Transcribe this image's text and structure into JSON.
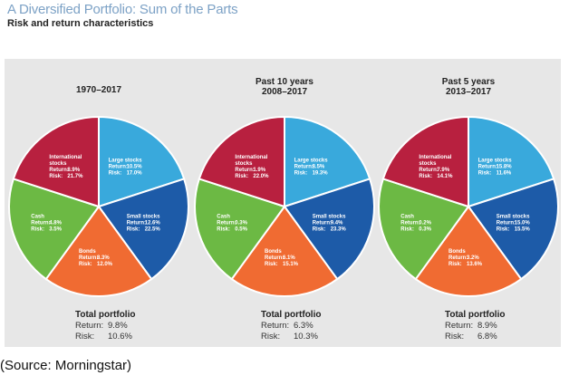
{
  "title": "A Diversified Portfolio: Sum of the Parts",
  "subtitle": "Risk and return characteristics",
  "source": "(Source: Morningstar)",
  "labels": {
    "return": "Return:",
    "risk": "Risk:",
    "total": "Total portfolio"
  },
  "colors": {
    "Large stocks": "#39a9dc",
    "Small stocks": "#1d5ba8",
    "Bonds": "#f06b32",
    "Cash": "#6cb944",
    "International stocks": "#b8203f"
  },
  "chart_data": [
    {
      "type": "pie",
      "title_lines": [
        "1970–2017"
      ],
      "slices": [
        {
          "name": "Large stocks",
          "label_lines": [
            "Large stocks"
          ],
          "return": "10.5%",
          "risk": "17.0%",
          "share": 0.2
        },
        {
          "name": "Small stocks",
          "label_lines": [
            "Small stocks"
          ],
          "return": "12.6%",
          "risk": "22.5%",
          "share": 0.2
        },
        {
          "name": "Bonds",
          "label_lines": [
            "Bonds"
          ],
          "return": "8.3%",
          "risk": "12.0%",
          "share": 0.2
        },
        {
          "name": "Cash",
          "label_lines": [
            "Cash"
          ],
          "return": "4.8%",
          "risk": "3.5%",
          "share": 0.2
        },
        {
          "name": "International stocks",
          "label_lines": [
            "International",
            "stocks"
          ],
          "return": "8.9%",
          "risk": "21.7%",
          "share": 0.2
        }
      ],
      "total": {
        "return": "9.8%",
        "risk": "10.6%"
      }
    },
    {
      "type": "pie",
      "title_lines": [
        "Past 10 years",
        "2008–2017"
      ],
      "slices": [
        {
          "name": "Large stocks",
          "label_lines": [
            "Large stocks"
          ],
          "return": "8.5%",
          "risk": "19.3%",
          "share": 0.2
        },
        {
          "name": "Small stocks",
          "label_lines": [
            "Small stocks"
          ],
          "return": "9.4%",
          "risk": "23.3%",
          "share": 0.2
        },
        {
          "name": "Bonds",
          "label_lines": [
            "Bonds"
          ],
          "return": "6.1%",
          "risk": "15.1%",
          "share": 0.2
        },
        {
          "name": "Cash",
          "label_lines": [
            "Cash"
          ],
          "return": "0.3%",
          "risk": "0.5%",
          "share": 0.2
        },
        {
          "name": "International stocks",
          "label_lines": [
            "International",
            "stocks"
          ],
          "return": "1.9%",
          "risk": "22.0%",
          "share": 0.2
        }
      ],
      "total": {
        "return": "6.3%",
        "risk": "10.3%"
      }
    },
    {
      "type": "pie",
      "title_lines": [
        "Past 5 years",
        "2013–2017"
      ],
      "slices": [
        {
          "name": "Large stocks",
          "label_lines": [
            "Large stocks"
          ],
          "return": "15.8%",
          "risk": "11.6%",
          "share": 0.2
        },
        {
          "name": "Small stocks",
          "label_lines": [
            "Small stocks"
          ],
          "return": "15.0%",
          "risk": "15.5%",
          "share": 0.2
        },
        {
          "name": "Bonds",
          "label_lines": [
            "Bonds"
          ],
          "return": "3.2%",
          "risk": "13.6%",
          "share": 0.2
        },
        {
          "name": "Cash",
          "label_lines": [
            "Cash"
          ],
          "return": "0.2%",
          "risk": "0.3%",
          "share": 0.2
        },
        {
          "name": "International stocks",
          "label_lines": [
            "International",
            "stocks"
          ],
          "return": "7.9%",
          "risk": "14.1%",
          "share": 0.2
        }
      ],
      "total": {
        "return": "8.9%",
        "risk": "6.8%"
      }
    }
  ]
}
